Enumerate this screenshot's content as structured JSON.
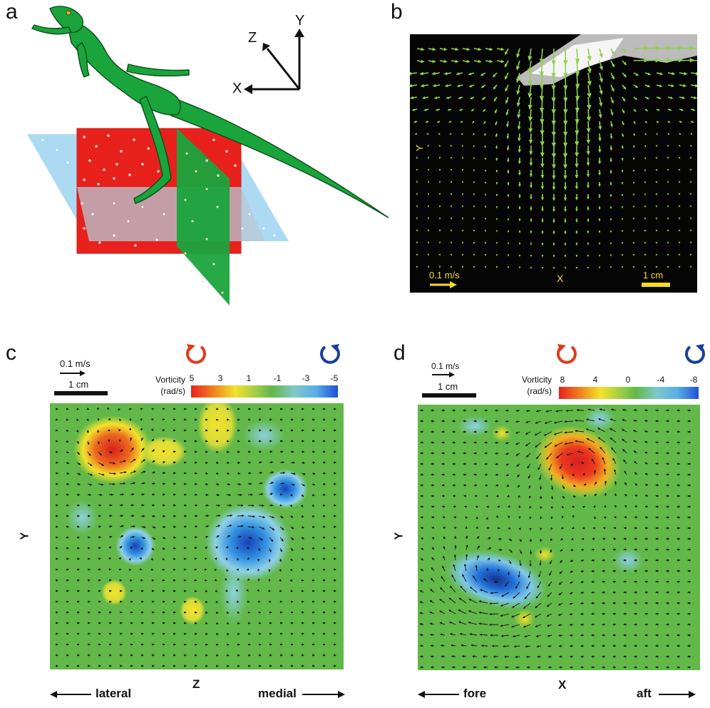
{
  "panels": {
    "a": {
      "letter": "a",
      "axes": {
        "y": "Y",
        "z": "Z",
        "x": "X"
      }
    },
    "b": {
      "letter": "b",
      "y_axis_label": "Y",
      "x_axis_label": "X",
      "velocity_scale": "0.1 m/s",
      "length_scale": "1 cm"
    },
    "c": {
      "letter": "c",
      "velocity_scale": "0.1 m/s",
      "length_scale": "1 cm",
      "vorticity_label_line1": "Vorticity",
      "vorticity_label_line2": "(rad/s)",
      "colorbar_ticks": [
        "5",
        "3",
        "1",
        "-1",
        "-3",
        "-5"
      ],
      "y_axis_label": "Y",
      "x_axis_label": "Z",
      "left_direction": "lateral",
      "right_direction": "medial"
    },
    "d": {
      "letter": "d",
      "velocity_scale": "0.1 m/s",
      "length_scale": "1 cm",
      "vorticity_label_line1": "Vorticity",
      "vorticity_label_line2": "(rad/s)",
      "colorbar_ticks": [
        "8",
        "4",
        "0",
        "-4",
        "-8"
      ],
      "y_axis_label": "Y",
      "x_axis_label": "X",
      "left_direction": "fore",
      "right_direction": "aft"
    }
  },
  "colors": {
    "field_green": "#62b848",
    "lizard_green": "#1aa43c",
    "red_plane": "#e8211c",
    "blue_plane": "#a9d8f2",
    "vector_green": "#8fd14a",
    "rotation_red": "#e03a1e",
    "rotation_blue": "#1a3f9c",
    "scale_yellow": "#f6dd1d"
  }
}
